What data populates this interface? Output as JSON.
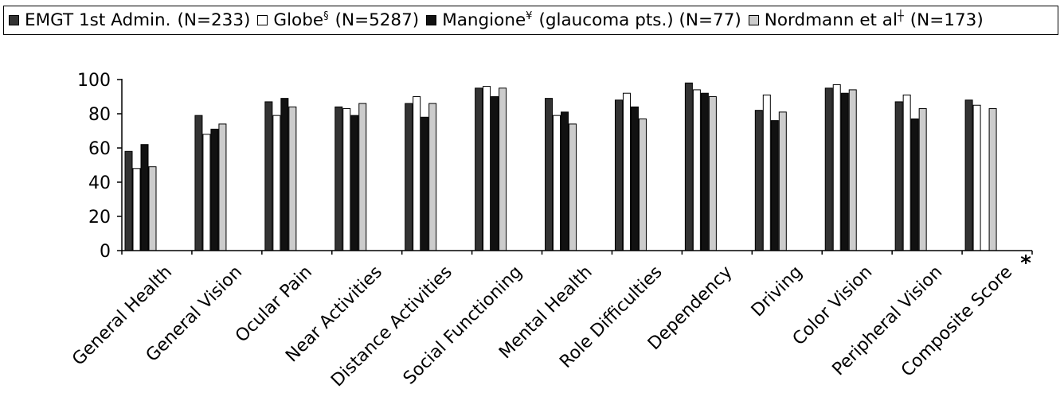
{
  "chart_data": {
    "type": "bar",
    "categories": [
      "General Health",
      "General Vision",
      "Ocular Pain",
      "Near Activities",
      "Distance Activities",
      "Social Functioning",
      "Mental Health",
      "Role Difficulties",
      "Dependency",
      "Driving",
      "Color Vision",
      "Peripheral Vision",
      "Composite Score"
    ],
    "series": [
      {
        "name": "EMGT 1st Admin.",
        "sup": "",
        "n_label": "(N=233)",
        "color": "#333333",
        "values": [
          58,
          79,
          87,
          84,
          86,
          95,
          89,
          88,
          98,
          82,
          95,
          87,
          88
        ]
      },
      {
        "name": "Globe",
        "sup": "§",
        "n_label": "(N=5287)",
        "color": "#ffffff",
        "values": [
          48,
          68,
          79,
          83,
          90,
          96,
          79,
          92,
          94,
          91,
          97,
          91,
          85
        ]
      },
      {
        "name": "Mangione",
        "sup": "¥",
        "n_label": "(glaucoma pts.) (N=77)",
        "color": "#111111",
        "values": [
          62,
          71,
          89,
          79,
          78,
          90,
          81,
          84,
          92,
          76,
          92,
          77,
          null
        ]
      },
      {
        "name": "Nordmann et al",
        "sup": "┼",
        "n_label": "(N=173)",
        "color": "#cccccc",
        "values": [
          49,
          74,
          84,
          86,
          86,
          95,
          74,
          77,
          90,
          81,
          94,
          83,
          83
        ]
      }
    ],
    "ylim": [
      0,
      100
    ],
    "yticks": [
      "0",
      "20",
      "40",
      "60",
      "80",
      "100"
    ],
    "annotation": "*",
    "grid": false,
    "legend_position": "top"
  }
}
